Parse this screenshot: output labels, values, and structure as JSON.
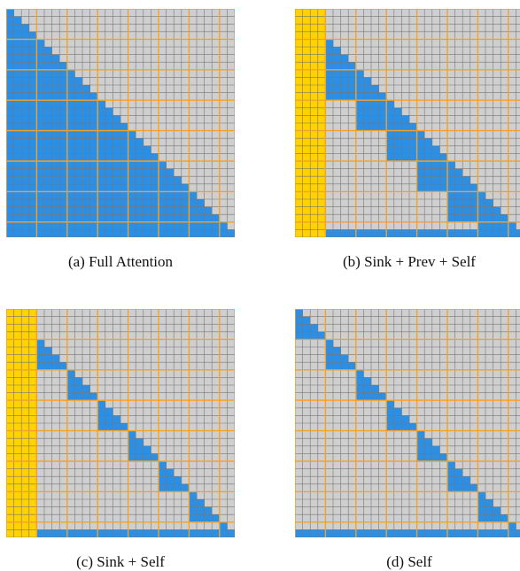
{
  "figure": {
    "grid_size": 30,
    "block_size": 4,
    "colors": {
      "masked": "#cfcfcf",
      "attend": "#2b8fe6",
      "sink": "#ffd200",
      "cell_line": "#777777",
      "block_line": "#f2a22a"
    },
    "panels": [
      {
        "id": "a",
        "caption": "(a) Full Attention",
        "pattern": "full"
      },
      {
        "id": "b",
        "caption": "(b) Sink + Prev + Self",
        "pattern": "sink-prev-self"
      },
      {
        "id": "c",
        "caption": "(c) Sink + Self",
        "pattern": "sink-self"
      },
      {
        "id": "d",
        "caption": "(d) Self",
        "pattern": "self"
      }
    ]
  }
}
